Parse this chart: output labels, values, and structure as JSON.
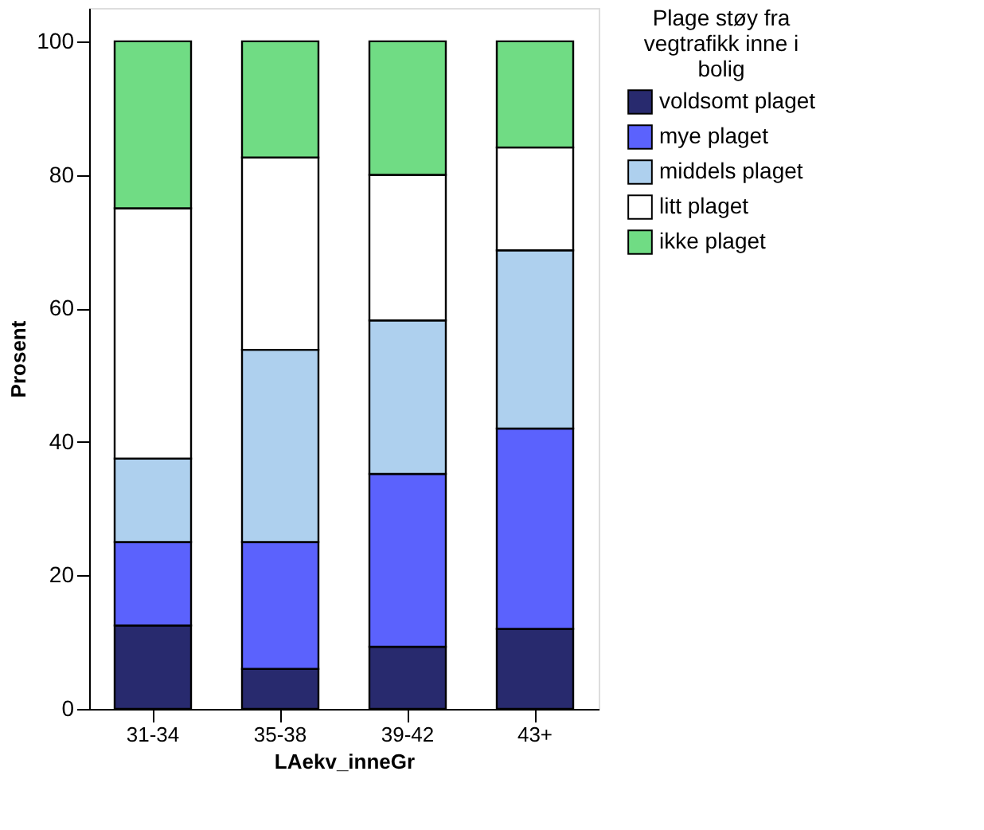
{
  "chart_data": {
    "type": "bar",
    "stacked": true,
    "xlabel": "LAekv_inneGr",
    "ylabel": "Prosent",
    "legend_title": "Plage støy fra vegtrafikk inne i bolig",
    "legend": "top right",
    "categories": [
      "31-34",
      "35-38",
      "39-42",
      "43+"
    ],
    "series": [
      {
        "name": "voldsomt plaget",
        "color": "#282a6e",
        "values": [
          12.5,
          6.0,
          9.3,
          12.0
        ]
      },
      {
        "name": "mye plaget",
        "color": "#5b62fd",
        "values": [
          12.5,
          19.0,
          25.9,
          30.0
        ]
      },
      {
        "name": "middels plaget",
        "color": "#aed0ee",
        "values": [
          12.5,
          28.8,
          23.0,
          26.7
        ]
      },
      {
        "name": "litt plaget",
        "color": "#ffffff",
        "values": [
          37.5,
          28.8,
          21.8,
          15.4
        ]
      },
      {
        "name": "ikke plaget",
        "color": "#70dc84",
        "values": [
          25.0,
          17.4,
          20.0,
          15.9
        ]
      }
    ],
    "ylim": [
      0,
      105
    ],
    "yticks": [
      0,
      20,
      40,
      60,
      80,
      100
    ],
    "grid": false
  }
}
